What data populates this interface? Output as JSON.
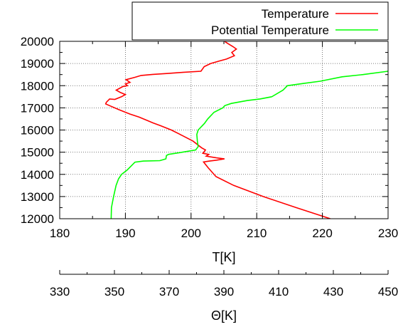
{
  "chart_data": {
    "type": "line",
    "xlabel": "T[K]",
    "ylabel": "",
    "xlim": [
      180,
      230
    ],
    "ylim": [
      12000,
      20000
    ],
    "x_ticks": [
      180,
      190,
      200,
      210,
      220,
      230
    ],
    "y_ticks": [
      12000,
      13000,
      14000,
      15000,
      16000,
      17000,
      18000,
      19000,
      20000
    ],
    "grid": true,
    "legend_position": "top-right",
    "secondary_x_axis": {
      "label": "Θ[K]",
      "lim": [
        330,
        450
      ],
      "ticks": [
        330,
        350,
        370,
        390,
        410,
        430,
        450
      ]
    },
    "series": [
      {
        "name": "Temperature",
        "color": "#ff0000",
        "axis": "T",
        "points": [
          [
            221.2,
            12000
          ],
          [
            216.0,
            12500
          ],
          [
            211.0,
            13000
          ],
          [
            206.5,
            13500
          ],
          [
            203.8,
            13900
          ],
          [
            202.6,
            14300
          ],
          [
            202.2,
            14450
          ],
          [
            201.9,
            14560
          ],
          [
            202.8,
            14600
          ],
          [
            203.9,
            14640
          ],
          [
            205.1,
            14700
          ],
          [
            203.8,
            14750
          ],
          [
            202.3,
            14820
          ],
          [
            202.7,
            14900
          ],
          [
            201.8,
            14950
          ],
          [
            202.2,
            15100
          ],
          [
            201.6,
            15200
          ],
          [
            200.3,
            15500
          ],
          [
            198.2,
            15820
          ],
          [
            197.0,
            16000
          ],
          [
            195.3,
            16200
          ],
          [
            194.2,
            16320
          ],
          [
            193.4,
            16420
          ],
          [
            192.1,
            16580
          ],
          [
            190.7,
            16720
          ],
          [
            189.0,
            16920
          ],
          [
            187.6,
            17100
          ],
          [
            187.0,
            17180
          ],
          [
            187.1,
            17250
          ],
          [
            187.6,
            17400
          ],
          [
            188.4,
            17380
          ],
          [
            189.4,
            17500
          ],
          [
            190.0,
            17600
          ],
          [
            189.2,
            17700
          ],
          [
            188.6,
            17800
          ],
          [
            189.6,
            17960
          ],
          [
            190.3,
            18000
          ],
          [
            190.0,
            18080
          ],
          [
            190.7,
            18150
          ],
          [
            190.1,
            18270
          ],
          [
            191.5,
            18380
          ],
          [
            192.4,
            18460
          ],
          [
            194.2,
            18510
          ],
          [
            196.5,
            18550
          ],
          [
            198.7,
            18600
          ],
          [
            201.5,
            18650
          ],
          [
            202.0,
            18860
          ],
          [
            203.0,
            19000
          ],
          [
            204.4,
            19120
          ],
          [
            205.4,
            19200
          ],
          [
            206.6,
            19350
          ],
          [
            206.2,
            19500
          ],
          [
            206.9,
            19650
          ],
          [
            206.4,
            19760
          ],
          [
            205.6,
            19900
          ],
          [
            205.1,
            20000
          ]
        ]
      },
      {
        "name": "Potential Temperature",
        "color": "#00ff00",
        "axis": "Θ",
        "points": [
          [
            348.8,
            12000
          ],
          [
            348.9,
            12500
          ],
          [
            349.7,
            13000
          ],
          [
            350.6,
            13500
          ],
          [
            351.5,
            13800
          ],
          [
            352.6,
            14000
          ],
          [
            354.7,
            14200
          ],
          [
            357.5,
            14550
          ],
          [
            360.6,
            14600
          ],
          [
            366.6,
            14620
          ],
          [
            368.8,
            14700
          ],
          [
            369.0,
            14850
          ],
          [
            369.8,
            14900
          ],
          [
            374.9,
            15000
          ],
          [
            379.7,
            15100
          ],
          [
            380.6,
            15250
          ],
          [
            380.3,
            15500
          ],
          [
            380.1,
            15800
          ],
          [
            380.6,
            16000
          ],
          [
            382.9,
            16300
          ],
          [
            384.1,
            16500
          ],
          [
            386.4,
            16800
          ],
          [
            389.6,
            17000
          ],
          [
            390.3,
            17100
          ],
          [
            392.7,
            17200
          ],
          [
            398.6,
            17330
          ],
          [
            403.2,
            17400
          ],
          [
            407.5,
            17500
          ],
          [
            411.6,
            17800
          ],
          [
            413.2,
            18000
          ],
          [
            419.2,
            18100
          ],
          [
            425.2,
            18200
          ],
          [
            433.2,
            18400
          ],
          [
            440.8,
            18500
          ],
          [
            450.0,
            18650
          ]
        ]
      }
    ]
  }
}
